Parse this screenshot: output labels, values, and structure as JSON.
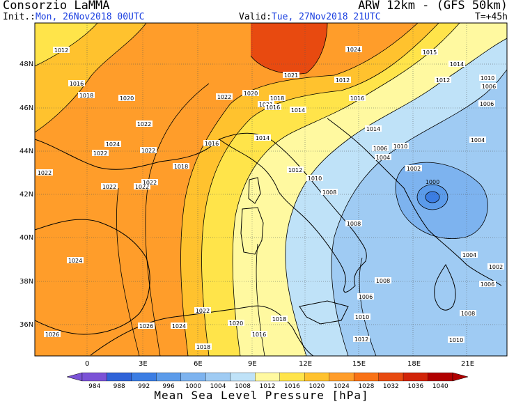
{
  "header": {
    "title_left": "Consorzio LaMMA",
    "title_right": "ARW 12km - (GFS 50km)",
    "init_label": "Init.:",
    "init_value": "Mon, 26Nov2018 00UTC",
    "valid_label": "Valid:",
    "valid_value": "Tue, 27Nov2018 21UTC",
    "step": "T=+45h"
  },
  "map": {
    "lat_labels": [
      "48N",
      "46N",
      "44N",
      "42N",
      "40N",
      "38N",
      "36N"
    ],
    "lon_labels": [
      "0",
      "3E",
      "6E",
      "9E",
      "12E",
      "15E",
      "18E",
      "21E"
    ],
    "low_center_label": "1000",
    "isobar_labels": [
      "1012",
      "1016",
      "1018",
      "1020",
      "1022",
      "1024",
      "1022",
      "1022",
      "1022",
      "1022",
      "1022",
      "1024",
      "1022",
      "1018",
      "1016",
      "1014",
      "1012",
      "1014",
      "1022",
      "1020",
      "1021",
      "1024",
      "1021",
      "1018",
      "1016",
      "1015",
      "1014",
      "1012",
      "1010",
      "1006",
      "1006",
      "1004",
      "1016",
      "1014",
      "1012",
      "1010",
      "1008",
      "1008",
      "1006",
      "1004",
      "1002",
      "1010",
      "1014",
      "1008",
      "1006",
      "1004",
      "1002",
      "1026",
      "1024",
      "1026",
      "1022",
      "1020",
      "1018",
      "1016",
      "1018",
      "1010",
      "1012",
      "1010",
      "1008",
      "1006",
      "1008"
    ]
  },
  "colorbar": {
    "values": [
      "984",
      "988",
      "992",
      "996",
      "1000",
      "1004",
      "1008",
      "1012",
      "1016",
      "1020",
      "1024",
      "1028",
      "1032",
      "1036",
      "1040"
    ],
    "colors": [
      "#7b52d6",
      "#2f63d8",
      "#3b7de3",
      "#5b9bea",
      "#7db3ef",
      "#9fcbf3",
      "#bfe2f8",
      "#fff9a0",
      "#ffe44a",
      "#ffc22e",
      "#ff9d2a",
      "#f97216",
      "#e84a10",
      "#d12408",
      "#b00000"
    ],
    "units": "Mean Sea Level Pressure [hPa]"
  }
}
